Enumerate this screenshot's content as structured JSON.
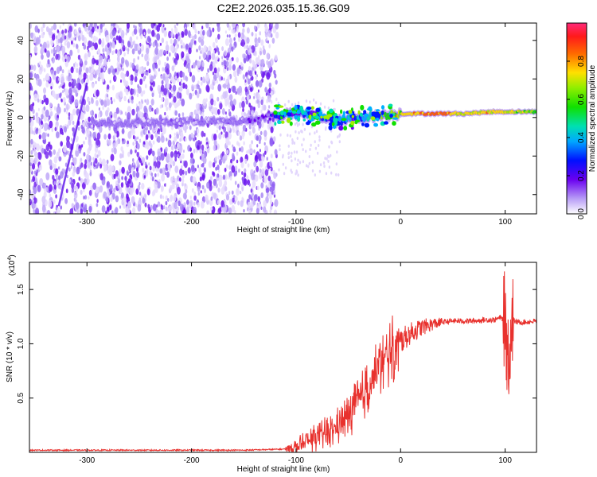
{
  "chart_data": [
    {
      "type": "heatmap",
      "title": "C2E2.2026.035.15.36.G09",
      "xlabel": "Height of straight line (km)",
      "ylabel": "Frequency (Hz)",
      "xlim": [
        -355,
        130
      ],
      "ylim": [
        -50,
        49
      ],
      "xticks": [
        -300,
        -200,
        -100,
        0,
        100
      ],
      "xtick_labels": [
        "-300",
        "-200",
        "-100",
        "0",
        "100"
      ],
      "yticks": [
        40,
        20,
        0,
        -20,
        -40
      ],
      "ytick_labels": [
        "40",
        "20",
        "0",
        "-20",
        "-40"
      ],
      "colorbar": {
        "label": "Normalized spectral amplitude",
        "range": [
          0,
          1
        ],
        "ticks": [
          0.0,
          0.2,
          0.4,
          0.6,
          0.8
        ],
        "tick_labels": [
          "0.0",
          "0.2",
          "0.4",
          "0.6",
          "0.8"
        ]
      },
      "ridge": {
        "description_note": "main spectral ridge near 0 Hz",
        "x": [
          -300,
          -250,
          -200,
          -150,
          -120,
          -100,
          -80,
          -60,
          -40,
          -20,
          0,
          30,
          60,
          90,
          130
        ],
        "freq": [
          -3,
          -3,
          -2,
          -2,
          1,
          2,
          1,
          -2,
          0,
          1,
          2,
          2,
          2,
          3,
          3
        ],
        "amplitude": [
          0.15,
          0.2,
          0.15,
          0.2,
          0.35,
          0.45,
          0.45,
          0.5,
          0.5,
          0.7,
          0.9,
          1.0,
          0.85,
          0.9,
          0.75
        ]
      }
    },
    {
      "type": "line",
      "xlabel": "Height of straight line (km)",
      "ylabel": "SNR (10 * v/v)",
      "y_multiplier_label": "(x10",
      "y_multiplier_exp": "4",
      "xlim": [
        -355,
        130
      ],
      "ylim": [
        0,
        1.75
      ],
      "xticks": [
        -300,
        -200,
        -100,
        0,
        100
      ],
      "xtick_labels": [
        "-300",
        "-200",
        "-100",
        "0",
        "100"
      ],
      "yticks": [
        0.5,
        1.0,
        1.5
      ],
      "ytick_labels": [
        "0.5",
        "1.0",
        "1.5"
      ],
      "color": "#e8312d",
      "series": [
        {
          "name": "SNR",
          "x": [
            -355,
            -300,
            -250,
            -200,
            -150,
            -110,
            -100,
            -90,
            -80,
            -70,
            -60,
            -50,
            -40,
            -30,
            -20,
            -10,
            0,
            10,
            20,
            30,
            40,
            50,
            60,
            70,
            80,
            90,
            95,
            100,
            103,
            106,
            110,
            120,
            130
          ],
          "y": [
            0.02,
            0.02,
            0.02,
            0.02,
            0.02,
            0.03,
            0.05,
            0.09,
            0.14,
            0.18,
            0.24,
            0.34,
            0.46,
            0.62,
            0.78,
            0.92,
            1.02,
            1.1,
            1.15,
            1.18,
            1.2,
            1.21,
            1.21,
            1.21,
            1.22,
            1.22,
            1.24,
            1.22,
            0.85,
            1.25,
            1.2,
            1.2,
            1.21
          ]
        }
      ]
    }
  ]
}
